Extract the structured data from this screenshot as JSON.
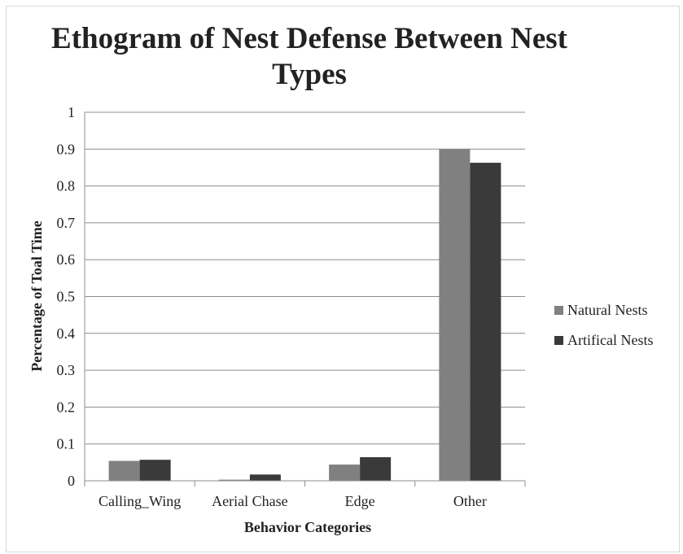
{
  "chart_data": {
    "type": "bar",
    "title": "Ethogram of Nest Defense Between Nest Types",
    "xlabel": "Behavior Categories",
    "ylabel": "Percentage of Toal Time",
    "categories": [
      "Calling_Wing",
      "Aerial Chase",
      "Edge",
      "Other"
    ],
    "series": [
      {
        "name": "Natural Nests",
        "color": "#808080",
        "values": [
          0.054,
          0.003,
          0.044,
          0.9
        ]
      },
      {
        "name": "Artifical Nests",
        "color": "#3a3a3a",
        "values": [
          0.057,
          0.017,
          0.064,
          0.863
        ]
      }
    ],
    "ylim": [
      0,
      1
    ],
    "yticks": [
      "0",
      "0.1",
      "0.2",
      "0.3",
      "0.4",
      "0.5",
      "0.6",
      "0.7",
      "0.8",
      "0.9",
      "1"
    ],
    "grid": true,
    "legend_position": "right"
  }
}
